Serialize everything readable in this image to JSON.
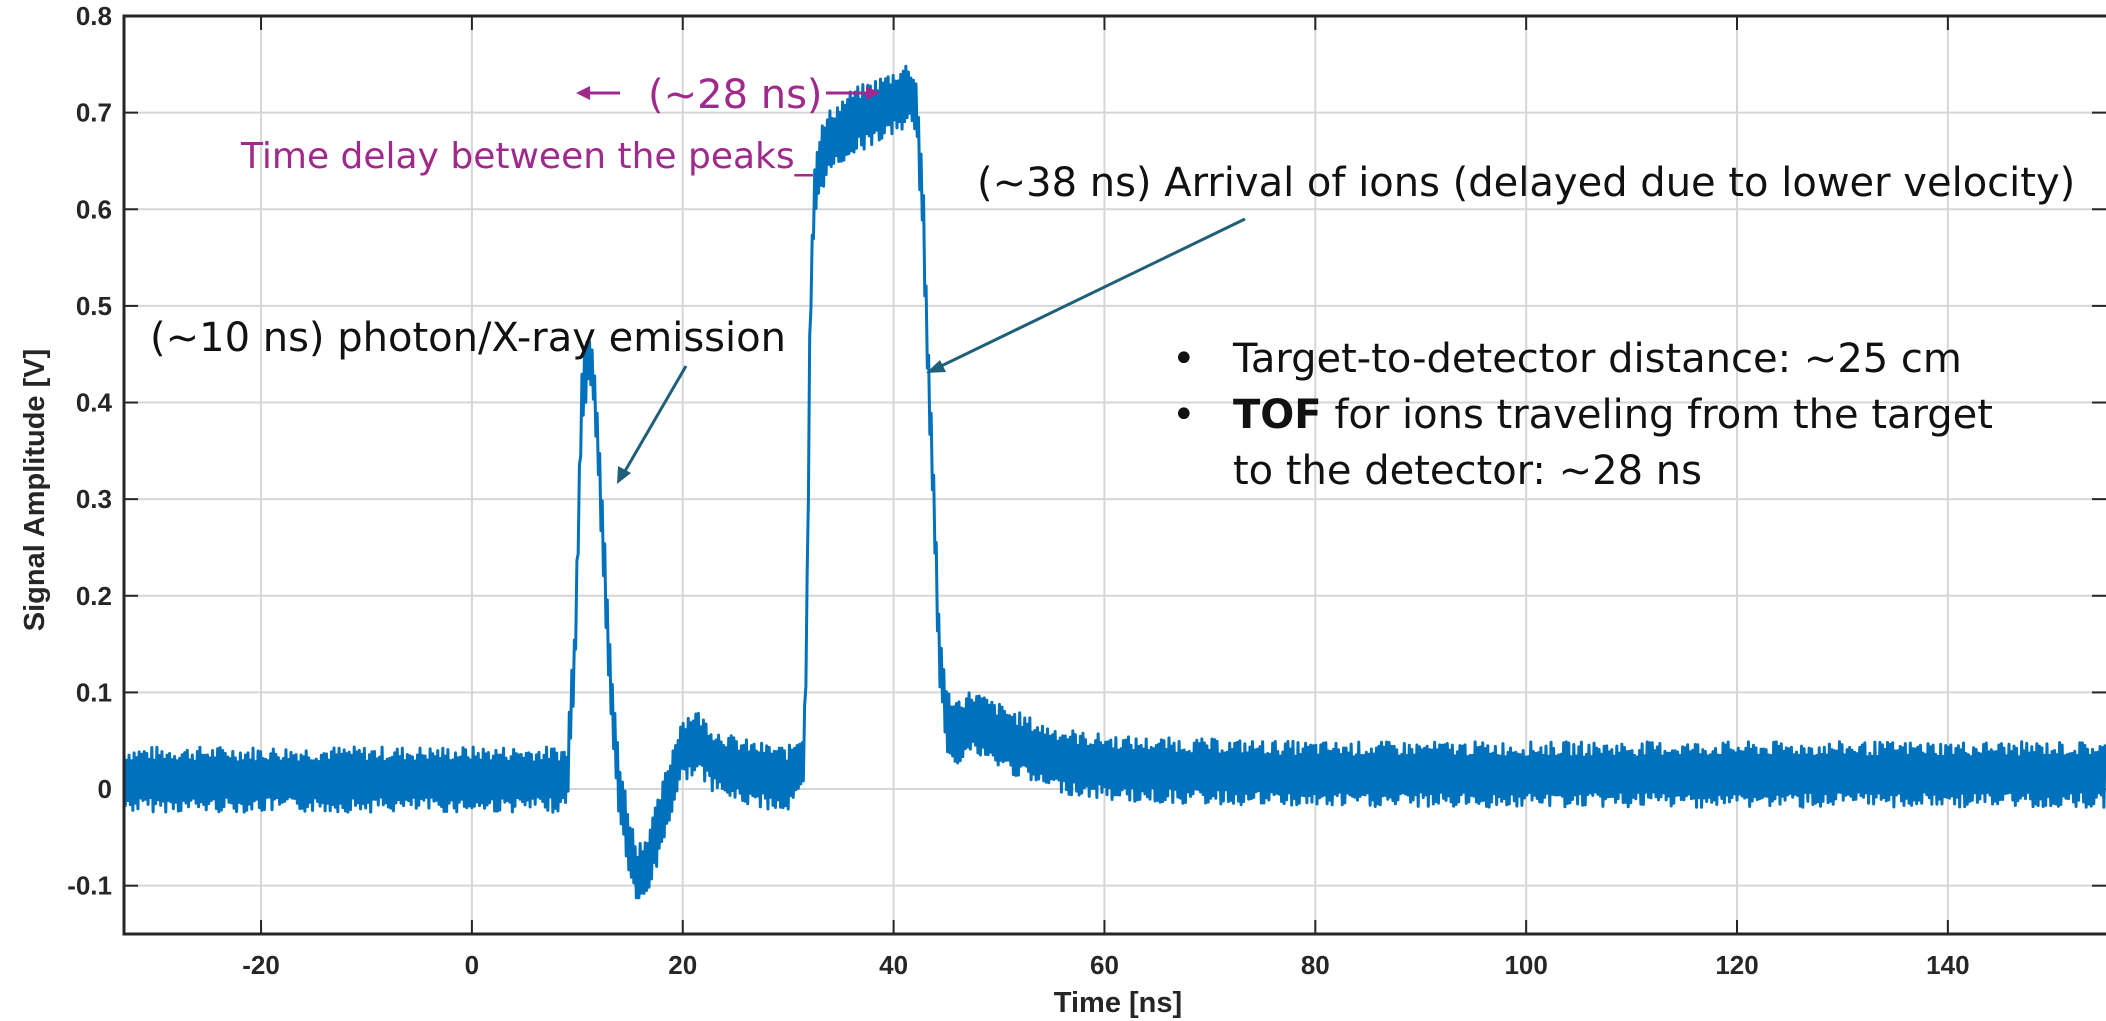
{
  "chart_data": {
    "type": "line",
    "title": "",
    "xlabel": "Time [ns]",
    "ylabel": "Signal Amplitude [V]",
    "xlim": [
      -33,
      155
    ],
    "ylim": [
      -0.15,
      0.8
    ],
    "xticks": [
      -20,
      0,
      20,
      40,
      60,
      80,
      100,
      120,
      140
    ],
    "xtick_labels": [
      "-20",
      "0",
      "20",
      "40",
      "60",
      "80",
      "100",
      "120",
      "140"
    ],
    "yticks": [
      -0.1,
      0,
      0.1,
      0.2,
      0.3,
      0.4,
      0.5,
      0.6,
      0.7,
      0.8
    ],
    "ytick_labels": [
      "-0.1",
      "0",
      "0.1",
      "0.2",
      "0.3",
      "0.4",
      "0.5",
      "0.6",
      "0.7",
      "0.8"
    ],
    "grid": true,
    "series": [
      {
        "name": "",
        "color": "#0072BD",
        "x": [
          -33,
          9,
          9.8,
          10.4,
          11,
          11.5,
          12,
          12.7,
          13.3,
          14,
          14.8,
          15.6,
          16.5,
          17.5,
          18.5,
          19.8,
          21.2,
          23,
          25,
          27,
          30,
          31.5,
          31.8,
          32.1,
          32.5,
          33,
          34,
          36,
          38,
          40,
          41.5,
          42.2,
          42.8,
          43.3,
          43.8,
          44.3,
          45,
          46,
          47.5,
          49,
          51,
          54,
          58,
          63,
          70,
          80,
          100,
          130,
          155
        ],
        "y": [
          0.01,
          0.01,
          0.15,
          0.4,
          0.45,
          0.43,
          0.35,
          0.2,
          0.08,
          0.0,
          -0.05,
          -0.09,
          -0.08,
          -0.05,
          -0.01,
          0.04,
          0.05,
          0.03,
          0.02,
          0.015,
          0.01,
          0.03,
          0.2,
          0.5,
          0.62,
          0.65,
          0.67,
          0.69,
          0.7,
          0.71,
          0.72,
          0.7,
          0.6,
          0.42,
          0.3,
          0.15,
          0.07,
          0.06,
          0.07,
          0.06,
          0.05,
          0.035,
          0.025,
          0.02,
          0.018,
          0.015,
          0.015,
          0.015,
          0.015
        ]
      }
    ],
    "annotations": {
      "photon": "(~10 ns) photon/X-ray emission",
      "ions": "(~38 ns) Arrival of ions (delayed due to lower velocity)",
      "delay_value": "(~28 ns)",
      "delay_label": "Time delay between the peaks_",
      "bullets": [
        {
          "bold": "",
          "text": "Target-to-detector distance: ~25 cm"
        },
        {
          "bold": "TOF",
          "text": " for ions traveling from the target"
        }
      ],
      "bullet_continuation": "to the detector: ~28 ns"
    }
  },
  "colors": {
    "series": "#0072BD",
    "annotation_purple": "#A0298C",
    "annotation_arrow": "#1F5F7A"
  }
}
